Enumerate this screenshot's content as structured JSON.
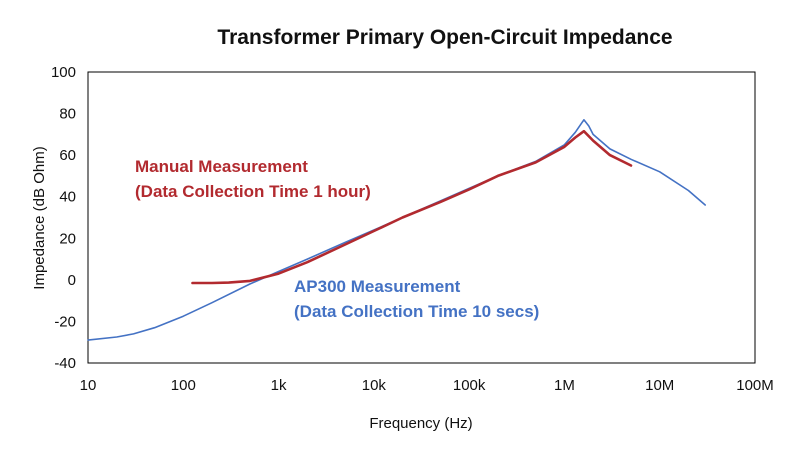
{
  "chart_data": {
    "type": "line",
    "title": "Transformer Primary Open-Circuit Impedance",
    "xlabel": "Frequency (Hz)",
    "ylabel": "Impedance (dB Ohm)",
    "xscale": "log",
    "xlim": [
      10,
      100000000
    ],
    "ylim": [
      -40,
      100
    ],
    "x_ticks": [
      10,
      100,
      1000,
      10000,
      100000,
      1000000,
      10000000,
      100000000
    ],
    "x_tick_labels": [
      "10",
      "100",
      "1k",
      "10k",
      "100k",
      "1M",
      "10M",
      "100M"
    ],
    "y_ticks": [
      -40,
      -20,
      0,
      20,
      40,
      60,
      80,
      100
    ],
    "y_tick_labels": [
      "-40",
      "-20",
      "0",
      "20",
      "40",
      "60",
      "80",
      "100"
    ],
    "grid": false,
    "series": [
      {
        "color": "#4472C4",
        "x": [
          10,
          20,
          30,
          50,
          100,
          200,
          500,
          1000,
          2000,
          5000,
          10000,
          20000,
          50000,
          100000,
          200000,
          500000,
          1000000,
          1300000,
          1600000,
          1800000,
          2000000,
          3000000,
          5000000,
          10000000,
          20000000,
          30000000
        ],
        "y": [
          -29,
          -27.5,
          -26,
          -23,
          -17.5,
          -11,
          -2,
          4,
          10,
          18,
          24,
          30,
          38,
          44,
          50,
          57,
          65,
          71,
          77,
          74,
          70,
          63,
          58,
          52,
          43,
          36
        ]
      },
      {
        "color": "#B22A2F",
        "x": [
          125,
          200,
          300,
          500,
          1000,
          2000,
          5000,
          10000,
          20000,
          50000,
          100000,
          200000,
          500000,
          1000000,
          1300000,
          1600000,
          2000000,
          3000000,
          5000000
        ],
        "y": [
          -1.5,
          -1.5,
          -1.3,
          -0.5,
          3,
          8.5,
          17,
          23.5,
          30,
          37.5,
          43.5,
          50,
          56.5,
          64,
          68.5,
          71.5,
          67,
          60,
          55
        ]
      }
    ],
    "annotations": [
      {
        "lines": [
          "Manual Measurement",
          "(Data Collection Time 1 hour)"
        ],
        "color": "#B22A2F"
      },
      {
        "lines": [
          "AP300 Measurement",
          "(Data Collection Time 10 secs)"
        ],
        "color": "#4472C4"
      }
    ]
  }
}
